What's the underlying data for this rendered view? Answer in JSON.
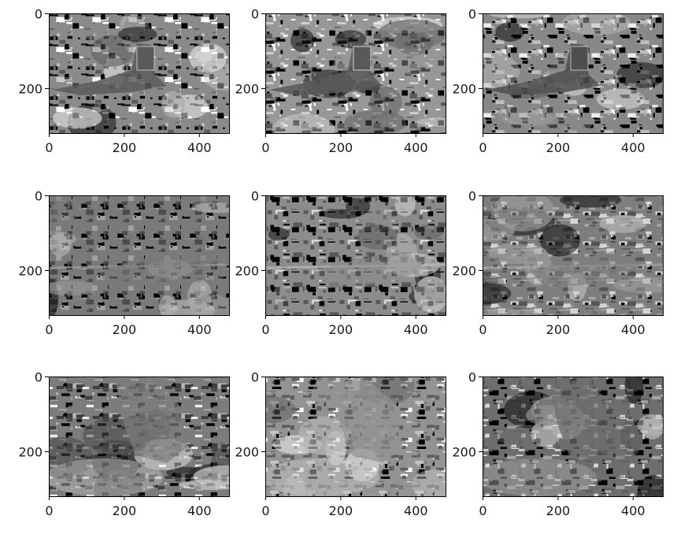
{
  "chart_data": [
    {
      "type": "heatmap",
      "image": "airplane-segmentation-1",
      "x_range": [
        0,
        480
      ],
      "y_range": [
        0,
        320
      ],
      "xticks": [
        0,
        200,
        400
      ],
      "yticks": [
        0,
        200
      ],
      "colormap": "gray",
      "tone_levels": [
        "#000000",
        "#5a5a5a",
        "#8a8a8a",
        "#c4c4c4",
        "#ffffff"
      ]
    },
    {
      "type": "heatmap",
      "image": "airplane-segmentation-2",
      "x_range": [
        0,
        480
      ],
      "y_range": [
        0,
        320
      ],
      "xticks": [
        0,
        200,
        400
      ],
      "yticks": [
        0,
        200
      ],
      "colormap": "gray",
      "tone_levels": [
        "#000000",
        "#595959",
        "#979797",
        "#d2d2d2",
        "#ffffff"
      ]
    },
    {
      "type": "heatmap",
      "image": "airplane-segmentation-3",
      "x_range": [
        0,
        480
      ],
      "y_range": [
        0,
        320
      ],
      "xticks": [
        0,
        200,
        400
      ],
      "yticks": [
        0,
        200
      ],
      "colormap": "gray",
      "tone_levels": [
        "#000000",
        "#4f4f4f",
        "#888888",
        "#bdbdbd",
        "#ececec"
      ]
    },
    {
      "type": "heatmap",
      "image": "grasshopper-segmentation-1",
      "x_range": [
        0,
        480
      ],
      "y_range": [
        0,
        320
      ],
      "xticks": [
        0,
        200,
        400
      ],
      "yticks": [
        0,
        200
      ],
      "colormap": "gray",
      "tone_levels": [
        "#000000",
        "#4c4c4c",
        "#7a7a7a",
        "#a0a0a0",
        "#c8c8c8"
      ]
    },
    {
      "type": "heatmap",
      "image": "grasshopper-segmentation-2",
      "x_range": [
        0,
        480
      ],
      "y_range": [
        0,
        320
      ],
      "xticks": [
        0,
        200,
        400
      ],
      "yticks": [
        0,
        200
      ],
      "colormap": "gray",
      "tone_levels": [
        "#000000",
        "#585858",
        "#8c8c8c",
        "#bcbcbc",
        "#e0e0e0"
      ]
    },
    {
      "type": "heatmap",
      "image": "grasshopper-segmentation-3",
      "x_range": [
        0,
        480
      ],
      "y_range": [
        0,
        320
      ],
      "xticks": [
        0,
        200,
        400
      ],
      "yticks": [
        0,
        200
      ],
      "colormap": "gray",
      "tone_levels": [
        "#000000",
        "#555555",
        "#7e7e7e",
        "#a8a8a8",
        "#d4d4d4"
      ]
    },
    {
      "type": "heatmap",
      "image": "butterfly-segmentation-1",
      "x_range": [
        0,
        480
      ],
      "y_range": [
        0,
        320
      ],
      "xticks": [
        0,
        200,
        400
      ],
      "yticks": [
        0,
        200
      ],
      "colormap": "gray",
      "tone_levels": [
        "#000000",
        "#404040",
        "#7c7c7c",
        "#b6b6b6",
        "#f0f0f0"
      ]
    },
    {
      "type": "heatmap",
      "image": "butterfly-segmentation-2",
      "x_range": [
        0,
        480
      ],
      "y_range": [
        0,
        320
      ],
      "xticks": [
        0,
        200,
        400
      ],
      "yticks": [
        0,
        200
      ],
      "colormap": "gray",
      "tone_levels": [
        "#000000",
        "#5e5e5e",
        "#939393",
        "#c4c4c4",
        "#ffffff"
      ]
    },
    {
      "type": "heatmap",
      "image": "butterfly-segmentation-3",
      "x_range": [
        0,
        480
      ],
      "y_range": [
        0,
        320
      ],
      "xticks": [
        0,
        200,
        400
      ],
      "yticks": [
        0,
        200
      ],
      "colormap": "gray",
      "tone_levels": [
        "#000000",
        "#575757",
        "#6e6e6e",
        "#a2a2a2",
        "#dadada"
      ]
    }
  ]
}
